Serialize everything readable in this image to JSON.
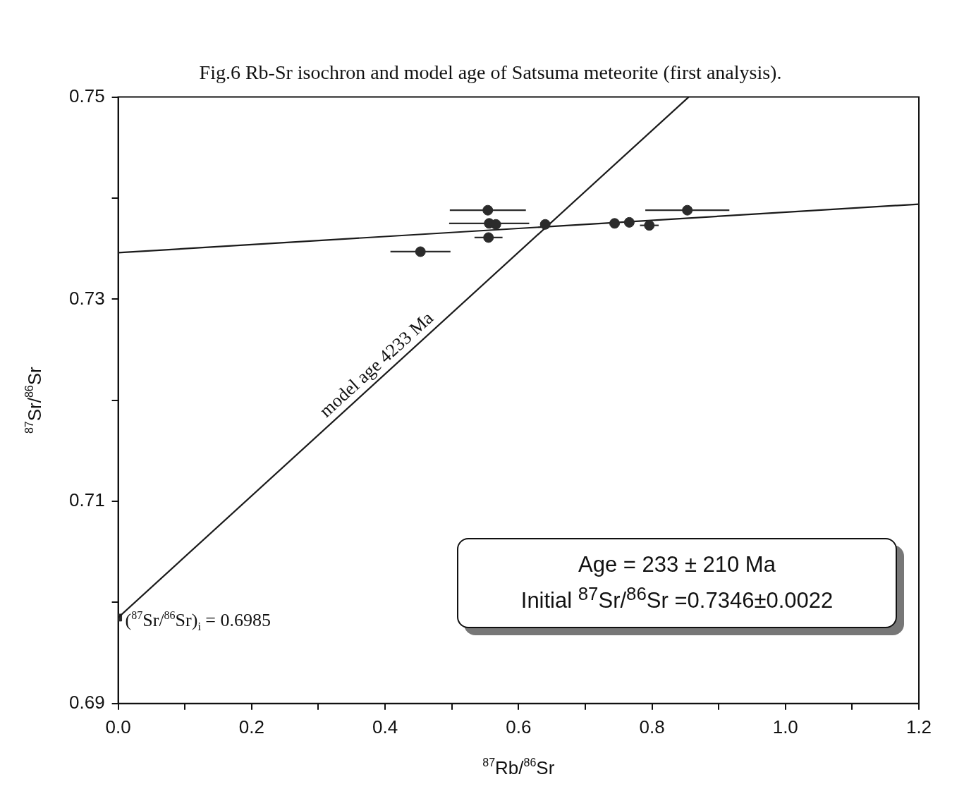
{
  "chart_data": {
    "type": "scatter",
    "title": "Fig.6 Rb-Sr isochron and model age of Satsuma meteorite (first analysis).",
    "xlabel": "$^{87}$Rb/$^{86}$Sr",
    "ylabel": "$^{87}$Sr/$^{86}$Sr",
    "xlim": [
      0,
      1.2
    ],
    "ylim": [
      0.69,
      0.75
    ],
    "xticks": [
      {
        "value": 0,
        "label": "0.0"
      },
      {
        "value": 0.1,
        "label": null
      },
      0.2,
      {
        "value": 0.3,
        "label": null
      },
      0.4,
      {
        "value": 0.5,
        "label": null
      },
      0.6,
      {
        "value": 0.7,
        "label": null
      },
      0.8,
      {
        "value": 0.9,
        "label": null
      },
      {
        "value": 1,
        "label": "1.0"
      },
      {
        "value": 1.1,
        "label": null
      },
      1.2
    ],
    "yticks": [
      0.69,
      {
        "value": 0.7,
        "label": null
      },
      0.71,
      {
        "value": 0.72,
        "label": null
      },
      0.73,
      {
        "value": 0.74,
        "label": null
      },
      0.75
    ],
    "grid": false,
    "marker": "circle",
    "series": [
      {
        "color": "#2b2b2b",
        "x": [
          0.453,
          0.554,
          0.556,
          0.566,
          0.555,
          0.64,
          0.744,
          0.766,
          0.796,
          0.853
        ],
        "values": [
          0.7347,
          0.7388,
          0.7375,
          0.7374,
          0.7361,
          0.7374,
          0.7375,
          0.7376,
          0.7373,
          0.7388
        ],
        "xerrors": [
          0.045,
          0.057,
          0.06,
          null,
          0.021,
          null,
          null,
          null,
          0.014,
          0.063
        ]
      },
      {
        "type": "line",
        "marker": "none",
        "color": "#1a1a1a",
        "x": [
          0,
          1.2
        ],
        "values": [
          0.7346,
          0.7394
        ]
      },
      {
        "type": "line",
        "marker": "none",
        "color": "#1a1a1a",
        "x": [
          0,
          0.855
        ],
        "values": [
          0.6985,
          0.75
        ]
      },
      {
        "color": "#2b2b2b",
        "marker": "square",
        "x": [
          0
        ],
        "values": [
          0.6985
        ]
      }
    ],
    "annotations": [
      {
        "text": "model age 4233 Ma",
        "x": 0.4,
        "y": 0.7226
      },
      {
        "text": "($^{87}$Sr/$^{86}$Sr)$_{i}$ = 0.6985",
        "x": 0,
        "y": 0.6985
      },
      "Age = 233 ± 210 Ma",
      "Initial $^{87}$Sr/$^{86}$Sr =0.7346±0.0022"
    ]
  }
}
